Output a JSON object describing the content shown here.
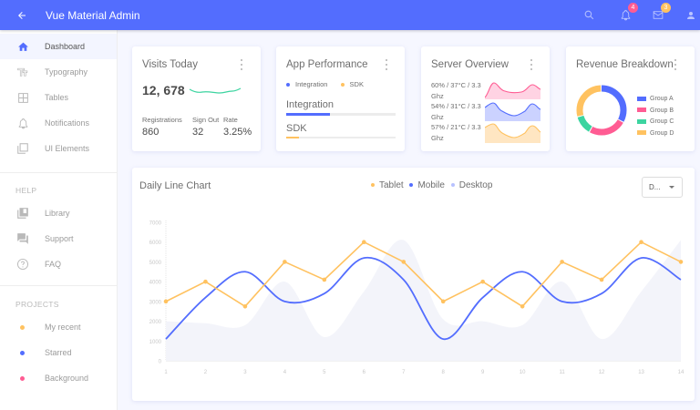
{
  "header": {
    "title": "Vue Material Admin",
    "back_icon": "arrow-left-icon",
    "actions": [
      {
        "name": "search",
        "icon": "search-icon"
      },
      {
        "name": "notifications",
        "icon": "bell-icon",
        "badge": "4",
        "badge_color": "#FF5C93"
      },
      {
        "name": "messages",
        "icon": "mail-icon",
        "badge": "3",
        "badge_color": "#FFC260"
      },
      {
        "name": "account",
        "icon": "person-icon"
      }
    ]
  },
  "sidebar": {
    "items": [
      {
        "label": "Dashboard",
        "icon": "home-icon",
        "active": true
      },
      {
        "label": "Typography",
        "icon": "text-fields-icon"
      },
      {
        "label": "Tables",
        "icon": "grid-icon"
      },
      {
        "label": "Notifications",
        "icon": "bell-outline-icon"
      },
      {
        "label": "UI Elements",
        "icon": "layers-icon"
      }
    ],
    "help_title": "HELP",
    "help_items": [
      {
        "label": "Library",
        "icon": "library-icon"
      },
      {
        "label": "Support",
        "icon": "forum-icon"
      },
      {
        "label": "FAQ",
        "icon": "help-circle-icon"
      }
    ],
    "projects_title": "PROJECTS",
    "projects": [
      {
        "label": "My recent",
        "color": "#FFC260"
      },
      {
        "label": "Starred",
        "color": "#536DFE"
      },
      {
        "label": "Background",
        "color": "#FF5C93"
      }
    ]
  },
  "visits": {
    "title": "Visits Today",
    "value": "12, 678",
    "stats": [
      {
        "label": "Registrations",
        "value": "860"
      },
      {
        "label": "Sign Out",
        "value": "32"
      },
      {
        "label": "Rate",
        "value": "3.25%"
      }
    ],
    "sparkline_color": "#3CD4A0"
  },
  "app_performance": {
    "title": "App Performance",
    "legend": [
      {
        "label": "Integration",
        "color": "#536DFE"
      },
      {
        "label": "SDK",
        "color": "#FFC260"
      }
    ],
    "bars": [
      {
        "label": "Integration",
        "percent": 40,
        "color": "#536DFE"
      },
      {
        "label": "SDK",
        "percent": 12,
        "color": "#FFC260"
      }
    ]
  },
  "server_overview": {
    "title": "Server Overview",
    "rows": [
      {
        "line1": "60% / 37°C / 3.3",
        "line2": "Ghz",
        "color": "#FF5C93",
        "fill": "#FFC9DD"
      },
      {
        "line1": "54% / 31°C / 3.3",
        "line2": "Ghz",
        "color": "#536DFE",
        "fill": "#C7CFFF"
      },
      {
        "line1": "57% / 21°C / 3.3",
        "line2": "Ghz",
        "color": "#FFC260",
        "fill": "#FFE6BF"
      }
    ]
  },
  "revenue": {
    "title": "Revenue Breakdown",
    "groups": [
      {
        "label": "Group A",
        "value": 400,
        "color": "#536DFE"
      },
      {
        "label": "Group B",
        "value": 300,
        "color": "#FF5C93"
      },
      {
        "label": "Group C",
        "value": 150,
        "color": "#3CD4A0"
      },
      {
        "label": "Group D",
        "value": 350,
        "color": "#FFC260"
      }
    ]
  },
  "daily_chart": {
    "title": "Daily Line Chart",
    "legend": [
      {
        "label": "Tablet",
        "color": "#FFC260"
      },
      {
        "label": "Mobile",
        "color": "#536DFE"
      },
      {
        "label": "Desktop",
        "color": "#B8C2FF"
      }
    ],
    "select_value": "D..."
  },
  "chart_data": {
    "type": "line",
    "title": "Daily Line Chart",
    "xlabel": "",
    "ylabel": "",
    "x": [
      1,
      2,
      3,
      4,
      5,
      6,
      7,
      8,
      9,
      10,
      11,
      12,
      13,
      14
    ],
    "ylim": [
      0,
      7000
    ],
    "yticks": [
      0,
      1000,
      2000,
      3000,
      4000,
      5000,
      6000,
      7000
    ],
    "grid": false,
    "legend_position": "top",
    "series": [
      {
        "name": "Tablet",
        "type": "line-with-markers",
        "color": "#FFC260",
        "values": [
          3000,
          4000,
          2750,
          5000,
          4100,
          6000,
          5000,
          3000,
          4000,
          2750,
          5000,
          4100,
          6000,
          5000
        ]
      },
      {
        "name": "Mobile",
        "type": "smooth-line",
        "color": "#536DFE",
        "values": [
          1100,
          3200,
          4500,
          3000,
          3400,
          5200,
          4100,
          1100,
          3200,
          4500,
          3000,
          3400,
          5200,
          4100
        ]
      },
      {
        "name": "Desktop",
        "type": "area",
        "color": "#F3F4FA",
        "values": [
          2000,
          1900,
          1800,
          4000,
          1200,
          3500,
          6100,
          2100,
          2000,
          1800,
          4000,
          1100,
          3500,
          6100
        ]
      }
    ]
  }
}
